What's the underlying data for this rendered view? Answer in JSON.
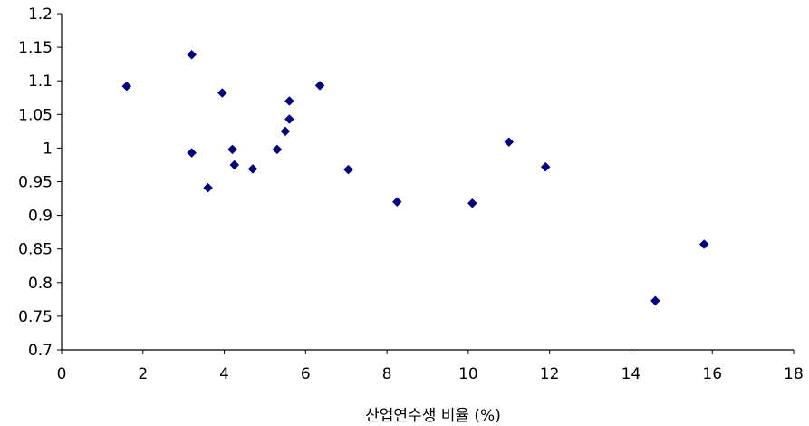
{
  "chart_data": {
    "type": "scatter",
    "title": "",
    "xlabel": "산업연수생 비율 (%)",
    "ylabel": "",
    "xlim": [
      0,
      18
    ],
    "ylim": [
      0.7,
      1.2
    ],
    "x_ticks": [
      "0",
      "2",
      "4",
      "6",
      "8",
      "10",
      "12",
      "14",
      "16",
      "18"
    ],
    "y_ticks": [
      "0.7",
      "0.75",
      "0.8",
      "0.85",
      "0.9",
      "0.95",
      "1",
      "1.05",
      "1.1",
      "1.15",
      "1.2"
    ],
    "grid": false,
    "legend": "none",
    "marker": "diamond",
    "marker_color": "#000080",
    "series": [
      {
        "points": [
          {
            "x": 1.6,
            "y": 1.092
          },
          {
            "x": 3.2,
            "y": 1.139
          },
          {
            "x": 3.2,
            "y": 0.993
          },
          {
            "x": 3.6,
            "y": 0.941
          },
          {
            "x": 3.95,
            "y": 1.082
          },
          {
            "x": 4.2,
            "y": 0.998
          },
          {
            "x": 4.25,
            "y": 0.975
          },
          {
            "x": 4.7,
            "y": 0.969
          },
          {
            "x": 5.3,
            "y": 0.998
          },
          {
            "x": 5.5,
            "y": 1.025
          },
          {
            "x": 5.6,
            "y": 1.043
          },
          {
            "x": 5.6,
            "y": 1.07
          },
          {
            "x": 6.35,
            "y": 1.093
          },
          {
            "x": 7.05,
            "y": 0.968
          },
          {
            "x": 8.25,
            "y": 0.92
          },
          {
            "x": 10.1,
            "y": 0.918
          },
          {
            "x": 11.0,
            "y": 1.009
          },
          {
            "x": 11.9,
            "y": 0.972
          },
          {
            "x": 14.6,
            "y": 0.773
          },
          {
            "x": 15.8,
            "y": 0.857
          }
        ]
      }
    ]
  }
}
